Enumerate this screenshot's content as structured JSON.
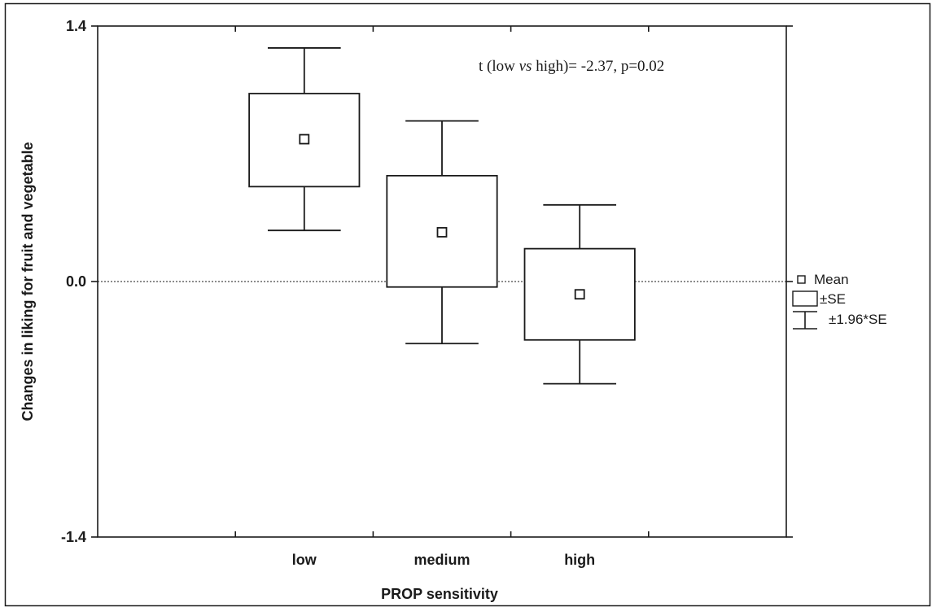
{
  "chart_data": {
    "type": "box",
    "xlabel": "PROP sensitivity",
    "ylabel": "Changes in liking for fruit and vegetable",
    "ylim": [
      -1.4,
      1.4
    ],
    "y_ticks": [
      -1.4,
      0.0,
      1.4
    ],
    "y_tick_labels": [
      "-1.4",
      "0.0",
      "1.4"
    ],
    "reference_line": 0.0,
    "categories": [
      "low",
      "medium",
      "high"
    ],
    "series": [
      {
        "mean": [
          0.78,
          0.27,
          -0.07
        ],
        "se_low": [
          0.52,
          -0.03,
          -0.32
        ],
        "se_high": [
          1.03,
          0.58,
          0.18
        ],
        "ci_low": [
          0.28,
          -0.34,
          -0.56
        ],
        "ci_high": [
          1.28,
          0.88,
          0.42
        ]
      }
    ],
    "annotation": {
      "prefix": "t (low ",
      "italic": "vs",
      "suffix": " high)= -2.37, p=0.02"
    },
    "legend": {
      "position": "right",
      "items": [
        "Mean",
        "±SE",
        "±1.96*SE"
      ]
    },
    "grid": false
  }
}
